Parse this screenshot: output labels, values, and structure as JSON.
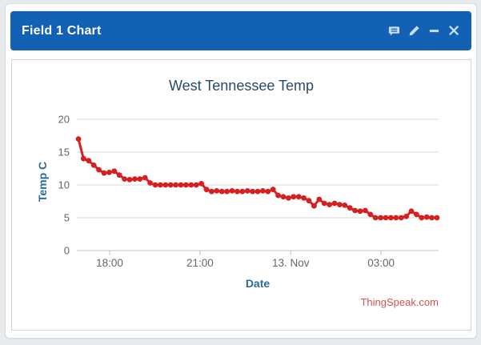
{
  "header": {
    "title": "Field 1 Chart",
    "icons": [
      {
        "name": "annotation-icon",
        "action": "notes"
      },
      {
        "name": "edit-icon",
        "action": "edit"
      },
      {
        "name": "collapse-icon",
        "action": "collapse"
      },
      {
        "name": "close-icon",
        "action": "close"
      }
    ]
  },
  "chart_data": {
    "type": "line",
    "title": "West Tennessee Temp",
    "xlabel": "Date",
    "ylabel": "Temp C",
    "ylim": [
      0,
      20
    ],
    "y_ticks": [
      0,
      5,
      10,
      15,
      20
    ],
    "x_ticks": [
      {
        "label": "18:00",
        "pos": 0.087
      },
      {
        "label": "21:00",
        "pos": 0.339
      },
      {
        "label": "13. Nov",
        "pos": 0.592
      },
      {
        "label": "03:00",
        "pos": 0.844
      }
    ],
    "grid": true,
    "legend": false,
    "series": [
      {
        "name": "Field 1",
        "color": "#d62020",
        "values": [
          17,
          14,
          13.7,
          13,
          12.3,
          11.8,
          11.9,
          12.1,
          11.5,
          10.9,
          10.8,
          10.9,
          10.9,
          11.1,
          10.3,
          10,
          10,
          10,
          10,
          10,
          10,
          10,
          10,
          10,
          10.2,
          9.3,
          9,
          9.1,
          9,
          9,
          9.1,
          9,
          9,
          9.1,
          9,
          9,
          9.1,
          9,
          9.3,
          8.4,
          8.2,
          8,
          8.2,
          8.2,
          8,
          7.6,
          6.8,
          7.8,
          7.2,
          7,
          7.2,
          7,
          6.9,
          6.5,
          6.1,
          6,
          6.1,
          5.5,
          5,
          5,
          5,
          5,
          5,
          5,
          5.2,
          6,
          5.5,
          5,
          5.1,
          5,
          5
        ]
      }
    ],
    "credits": "ThingSpeak.com"
  },
  "colors": {
    "header_bg": "#1261b5",
    "header_icon": "#c9dff5",
    "series": "#d62020",
    "title_text": "#274b6d",
    "axis_title_text": "#2b6a99",
    "tick_text": "#666666",
    "gridline": "#d9d9d9",
    "axis_line": "#c6c6c6",
    "credits_text": "#d45252"
  }
}
